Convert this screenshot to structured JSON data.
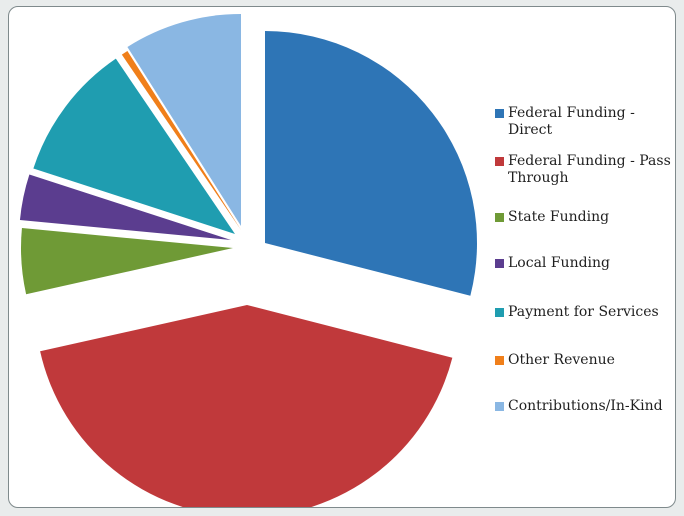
{
  "chart_data": {
    "type": "pie",
    "title": "",
    "legend_position": "right",
    "series": [
      {
        "label": "Federal Funding - Direct",
        "percent": 29.0,
        "color": "#2e75b6"
      },
      {
        "label": "Federal Funding - Pass Through",
        "percent": 42.5,
        "color": "#c0393b"
      },
      {
        "label": "State Funding",
        "percent": 5.0,
        "color": "#6f9a36"
      },
      {
        "label": "Local Funding",
        "percent": 3.5,
        "color": "#5b3d8f"
      },
      {
        "label": "Payment for Services",
        "percent": 10.5,
        "color": "#1f9db0"
      },
      {
        "label": "Other Revenue",
        "percent": 0.5,
        "color": "#f07f1a"
      },
      {
        "label": "Contributions/In-Kind",
        "percent": 9.0,
        "color": "#8ab7e3"
      }
    ]
  }
}
